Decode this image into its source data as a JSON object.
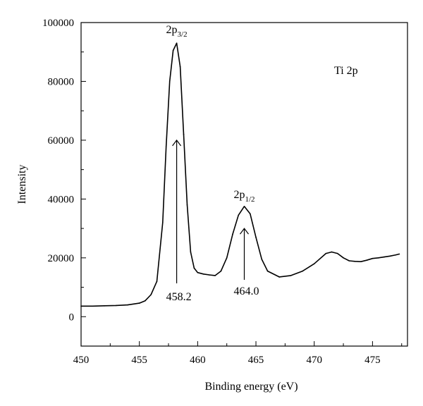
{
  "chart_data": {
    "type": "line",
    "title": "",
    "xlabel": "Binding energy (eV)",
    "ylabel": "Intensity",
    "xlim": [
      450,
      478
    ],
    "ylim": [
      -10000,
      100000
    ],
    "xticks": [
      450,
      455,
      460,
      465,
      470,
      475
    ],
    "yticks": [
      0,
      20000,
      40000,
      60000,
      80000,
      100000
    ],
    "grid": false,
    "series": [
      {
        "name": "",
        "x": [
          450,
          451,
          452,
          453,
          454,
          455,
          455.5,
          456,
          456.5,
          457,
          457.3,
          457.6,
          457.9,
          458.2,
          458.5,
          458.8,
          459.1,
          459.4,
          459.7,
          460.0,
          460.5,
          461,
          461.5,
          462,
          462.5,
          463,
          463.5,
          464.0,
          464.5,
          465,
          465.5,
          466,
          467,
          468,
          469,
          470,
          471,
          471.5,
          472,
          472.5,
          473,
          473.5,
          474,
          474.5,
          475,
          475.5,
          476,
          476.5,
          477,
          477.3
        ],
        "y": [
          3600,
          3600,
          3700,
          3800,
          4000,
          4600,
          5400,
          7500,
          12000,
          32000,
          58000,
          80000,
          90500,
          93000,
          85000,
          62000,
          38000,
          22000,
          16500,
          15000,
          14500,
          14200,
          14000,
          15500,
          20000,
          28000,
          34500,
          37500,
          35000,
          27000,
          19500,
          15500,
          13500,
          14000,
          15500,
          18000,
          21500,
          22000,
          21500,
          20000,
          19000,
          18800,
          18700,
          19200,
          19800,
          20000,
          20300,
          20600,
          21000,
          21300
        ]
      }
    ],
    "annotations": [
      {
        "text": "2p",
        "sub": "3/2",
        "x": 458.2,
        "y": 93000
      },
      {
        "text": "2p",
        "sub": "1/2",
        "x": 464.0,
        "y": 37500
      },
      {
        "text": "458.2",
        "x": 458.2,
        "arrow_to": 60000
      },
      {
        "text": "464.0",
        "x": 464.0,
        "arrow_to": 30000
      },
      {
        "text": "Ti 2p"
      }
    ]
  }
}
